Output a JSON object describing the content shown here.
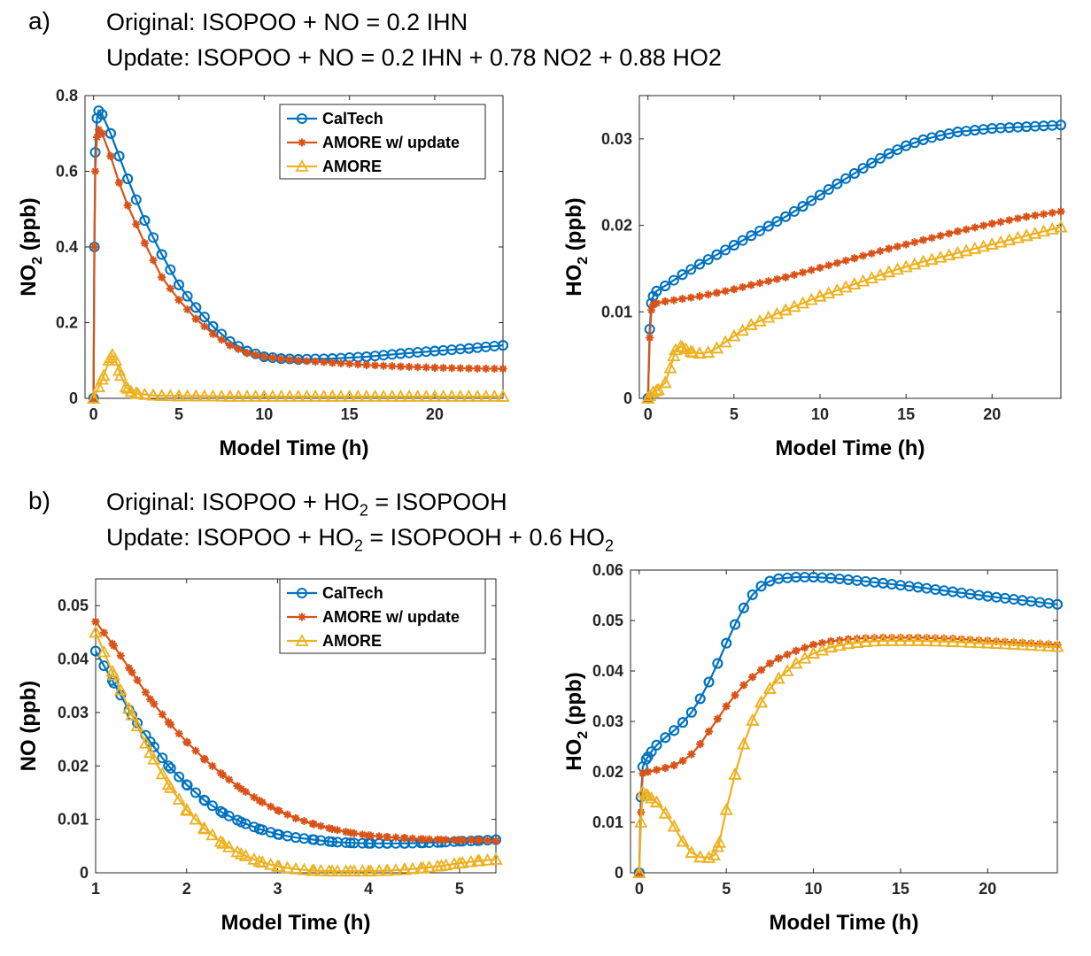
{
  "panel_a": {
    "letter": "a)",
    "line1": "Original: ISOPOO + NO = 0.2 IHN",
    "line2": "Update: ISOPOO + NO = 0.2 IHN + 0.78 NO2 + 0.88 HO2"
  },
  "panel_b": {
    "letter": "b)",
    "line1_a": "Original: ISOPOO + HO",
    "line1_sub": "2",
    "line1_b": " = ISOPOOH",
    "line2_a": "Update: ISOPOO + HO",
    "line2_sub": "2",
    "line2_b": " = ISOPOOH + 0.6 HO",
    "line2_sub2": "2"
  },
  "colors": {
    "caltech": "#0072BD",
    "amore_update": "#D95319",
    "amore": "#EDB120"
  },
  "chart_data": [
    {
      "id": "a-left",
      "type": "line",
      "xlabel": "Model Time (h)",
      "ylabel_main": "NO",
      "ylabel_sub": "2",
      "ylabel_unit": " (ppb)",
      "xlim": [
        -0.5,
        24
      ],
      "ylim": [
        0,
        0.8
      ],
      "xticks": [
        0,
        5,
        10,
        15,
        20
      ],
      "xticklabels": [
        "0",
        "5",
        "10",
        "15",
        "20"
      ],
      "yticks": [
        0,
        0.2,
        0.4,
        0.6,
        0.8
      ],
      "yticklabels": [
        "0",
        "0.2",
        "0.4",
        "0.6",
        "0.8"
      ],
      "legend": [
        "CalTech",
        "AMORE w/ update",
        "AMORE"
      ],
      "legend_position": "top-right",
      "series": [
        {
          "name": "CalTech",
          "x": [
            0,
            0.05,
            0.1,
            0.2,
            0.3,
            0.5,
            1,
            1.5,
            2,
            3,
            4,
            5,
            6,
            7,
            8,
            9,
            10,
            11,
            12,
            14,
            16,
            18,
            20,
            22,
            24
          ],
          "y": [
            0,
            0.4,
            0.65,
            0.74,
            0.76,
            0.75,
            0.7,
            0.64,
            0.58,
            0.47,
            0.38,
            0.3,
            0.24,
            0.19,
            0.15,
            0.125,
            0.11,
            0.105,
            0.103,
            0.105,
            0.11,
            0.118,
            0.125,
            0.132,
            0.14
          ]
        },
        {
          "name": "AMORE w/ update",
          "x": [
            0,
            0.05,
            0.1,
            0.2,
            0.3,
            0.5,
            1,
            1.5,
            2,
            3,
            4,
            5,
            6,
            7,
            8,
            9,
            10,
            11,
            12,
            14,
            16,
            18,
            20,
            22,
            24
          ],
          "y": [
            0,
            0.4,
            0.6,
            0.69,
            0.71,
            0.7,
            0.64,
            0.57,
            0.51,
            0.41,
            0.32,
            0.26,
            0.21,
            0.17,
            0.14,
            0.12,
            0.11,
            0.104,
            0.1,
            0.094,
            0.088,
            0.084,
            0.081,
            0.079,
            0.078
          ]
        },
        {
          "name": "AMORE",
          "x": [
            0,
            0.3,
            0.6,
            0.9,
            1.1,
            1.3,
            1.6,
            1.9,
            2.2,
            2.6,
            3,
            3.5,
            4,
            5,
            6,
            8,
            10,
            14,
            18,
            24
          ],
          "y": [
            0,
            0.03,
            0.06,
            0.1,
            0.115,
            0.1,
            0.06,
            0.03,
            0.018,
            0.012,
            0.01,
            0.008,
            0.007,
            0.006,
            0.006,
            0.005,
            0.005,
            0.005,
            0.005,
            0.005
          ]
        }
      ]
    },
    {
      "id": "a-right",
      "type": "line",
      "xlabel": "Model Time (h)",
      "ylabel_main": "HO",
      "ylabel_sub": "2",
      "ylabel_unit": " (ppb)",
      "xlim": [
        -0.5,
        24
      ],
      "ylim": [
        0,
        0.035
      ],
      "xticks": [
        0,
        5,
        10,
        15,
        20
      ],
      "xticklabels": [
        "0",
        "5",
        "10",
        "15",
        "20"
      ],
      "yticks": [
        0,
        0.01,
        0.02,
        0.03
      ],
      "yticklabels": [
        "0",
        "0.01",
        "0.02",
        "0.03"
      ],
      "series": [
        {
          "name": "CalTech",
          "x": [
            0,
            0.1,
            0.2,
            0.3,
            0.5,
            1,
            2,
            3,
            4,
            5,
            6,
            7,
            8,
            9,
            10,
            11,
            12,
            13,
            14,
            15,
            16,
            17,
            18,
            19,
            20,
            21,
            22,
            23,
            24
          ],
          "y": [
            0,
            0.008,
            0.011,
            0.0118,
            0.0124,
            0.013,
            0.0143,
            0.0155,
            0.0166,
            0.0177,
            0.0188,
            0.0199,
            0.021,
            0.0222,
            0.0235,
            0.0248,
            0.026,
            0.0272,
            0.0283,
            0.0292,
            0.0299,
            0.0304,
            0.0308,
            0.031,
            0.0312,
            0.0313,
            0.0314,
            0.0315,
            0.0316
          ]
        },
        {
          "name": "AMORE w/ update",
          "x": [
            0,
            0.1,
            0.2,
            0.3,
            0.5,
            1,
            2,
            3,
            4,
            5,
            6,
            8,
            10,
            12,
            14,
            16,
            18,
            20,
            22,
            24
          ],
          "y": [
            0,
            0.007,
            0.0102,
            0.0108,
            0.011,
            0.0112,
            0.0115,
            0.0118,
            0.0122,
            0.0126,
            0.0131,
            0.014,
            0.0151,
            0.0162,
            0.0173,
            0.0183,
            0.0193,
            0.0202,
            0.021,
            0.0216
          ]
        },
        {
          "name": "AMORE",
          "x": [
            0,
            0.1,
            0.3,
            0.6,
            1,
            1.3,
            1.6,
            1.9,
            2.2,
            2.6,
            3,
            3.5,
            4,
            5,
            6,
            8,
            10,
            12,
            14,
            16,
            18,
            20,
            22,
            24
          ],
          "y": [
            0,
            0.0003,
            0.0007,
            0.001,
            0.0018,
            0.0035,
            0.0056,
            0.006,
            0.0057,
            0.0053,
            0.0052,
            0.0053,
            0.0058,
            0.0072,
            0.0085,
            0.0102,
            0.0118,
            0.0132,
            0.0146,
            0.0158,
            0.0168,
            0.0178,
            0.0188,
            0.0198
          ]
        }
      ]
    },
    {
      "id": "b-left",
      "type": "line",
      "xlabel": "Model Time (h)",
      "ylabel_main": "NO",
      "ylabel_sub": "",
      "ylabel_unit": " (ppb)",
      "xlim": [
        1,
        5.4
      ],
      "ylim": [
        0,
        0.055
      ],
      "xticks": [
        1,
        2,
        3,
        4,
        5
      ],
      "xticklabels": [
        "1",
        "2",
        "3",
        "4",
        "5"
      ],
      "yticks": [
        0,
        0.01,
        0.02,
        0.03,
        0.04,
        0.05
      ],
      "yticklabels": [
        "0",
        "0.01",
        "0.02",
        "0.03",
        "0.04",
        "0.05"
      ],
      "legend": [
        "CalTech",
        "AMORE w/ update",
        "AMORE"
      ],
      "legend_position": "top-right",
      "series": [
        {
          "name": "CalTech",
          "x": [
            1,
            1.2,
            1.4,
            1.6,
            1.8,
            2,
            2.2,
            2.4,
            2.6,
            2.8,
            3,
            3.2,
            3.4,
            3.6,
            3.8,
            4,
            4.2,
            4.4,
            4.6,
            4.8,
            5,
            5.2,
            5.4
          ],
          "y": [
            0.0415,
            0.0355,
            0.0295,
            0.0245,
            0.02,
            0.0165,
            0.0135,
            0.0112,
            0.0095,
            0.0082,
            0.0072,
            0.0066,
            0.0062,
            0.0058,
            0.0056,
            0.0055,
            0.0055,
            0.0055,
            0.0056,
            0.0057,
            0.0059,
            0.006,
            0.0062
          ]
        },
        {
          "name": "AMORE w/ update",
          "x": [
            1,
            1.2,
            1.4,
            1.6,
            1.8,
            2,
            2.2,
            2.4,
            2.6,
            2.8,
            3,
            3.2,
            3.4,
            3.6,
            3.8,
            4,
            4.2,
            4.4,
            4.6,
            4.8,
            5,
            5.2,
            5.4
          ],
          "y": [
            0.047,
            0.0425,
            0.0375,
            0.0325,
            0.0282,
            0.0245,
            0.0212,
            0.0183,
            0.0157,
            0.0135,
            0.0117,
            0.0102,
            0.0091,
            0.0082,
            0.0075,
            0.007,
            0.0067,
            0.0065,
            0.0063,
            0.0062,
            0.0061,
            0.0061,
            0.006
          ]
        },
        {
          "name": "AMORE",
          "x": [
            1,
            1.2,
            1.4,
            1.6,
            1.8,
            2,
            2.2,
            2.4,
            2.6,
            2.8,
            3,
            3.2,
            3.4,
            3.6,
            3.8,
            4,
            4.2,
            4.4,
            4.6,
            4.8,
            5,
            5.2,
            5.4
          ],
          "y": [
            0.045,
            0.037,
            0.0295,
            0.0225,
            0.0165,
            0.0118,
            0.0082,
            0.0055,
            0.0035,
            0.0021,
            0.0012,
            0.0007,
            0.0004,
            0.0003,
            0.0003,
            0.0003,
            0.0004,
            0.0006,
            0.0009,
            0.0013,
            0.0018,
            0.0022,
            0.0025
          ]
        }
      ]
    },
    {
      "id": "b-right",
      "type": "line",
      "xlabel": "Model Time (h)",
      "ylabel_main": "HO",
      "ylabel_sub": "2",
      "ylabel_unit": " (ppb)",
      "xlim": [
        -0.5,
        24
      ],
      "ylim": [
        0,
        0.06
      ],
      "xticks": [
        0,
        5,
        10,
        15,
        20
      ],
      "xticklabels": [
        "0",
        "5",
        "10",
        "15",
        "20"
      ],
      "yticks": [
        0,
        0.01,
        0.02,
        0.03,
        0.04,
        0.05,
        0.06
      ],
      "yticklabels": [
        "0",
        "0.01",
        "0.02",
        "0.03",
        "0.04",
        "0.05",
        "0.06"
      ],
      "series": [
        {
          "name": "CalTech",
          "x": [
            0,
            0.1,
            0.2,
            0.4,
            0.7,
            1,
            1.5,
            2,
            2.5,
            3,
            3.5,
            4,
            4.5,
            5,
            5.5,
            6,
            6.5,
            7,
            7.5,
            8,
            9,
            10,
            11,
            12,
            14,
            16,
            18,
            20,
            22,
            24
          ],
          "y": [
            0,
            0.015,
            0.021,
            0.0225,
            0.024,
            0.0253,
            0.0268,
            0.0282,
            0.0298,
            0.0318,
            0.0345,
            0.0378,
            0.0415,
            0.0455,
            0.0492,
            0.0525,
            0.0551,
            0.0568,
            0.0578,
            0.0583,
            0.0586,
            0.0586,
            0.0584,
            0.0581,
            0.0574,
            0.0566,
            0.0557,
            0.0548,
            0.054,
            0.0532
          ]
        },
        {
          "name": "AMORE w/ update",
          "x": [
            0,
            0.1,
            0.2,
            0.5,
            1,
            1.5,
            2,
            2.5,
            3,
            3.5,
            4,
            4.5,
            5,
            5.5,
            6,
            6.5,
            7,
            7.5,
            8,
            9,
            10,
            11,
            12,
            13,
            14,
            16,
            18,
            20,
            22,
            24
          ],
          "y": [
            0,
            0.012,
            0.0197,
            0.02,
            0.0204,
            0.0208,
            0.0213,
            0.0222,
            0.0235,
            0.0255,
            0.028,
            0.0305,
            0.033,
            0.0352,
            0.0372,
            0.0388,
            0.0402,
            0.0415,
            0.0425,
            0.044,
            0.0452,
            0.0459,
            0.0463,
            0.0465,
            0.0466,
            0.0466,
            0.0464,
            0.046,
            0.0456,
            0.0452
          ]
        },
        {
          "name": "AMORE",
          "x": [
            0,
            0.1,
            0.2,
            0.4,
            0.7,
            1,
            1.5,
            2,
            2.5,
            3,
            3.5,
            4,
            4.3,
            4.6,
            5,
            5.5,
            6,
            6.5,
            7,
            7.5,
            8,
            9,
            10,
            11,
            12,
            13,
            14,
            16,
            18,
            20,
            22,
            24
          ],
          "y": [
            0,
            0.01,
            0.016,
            0.0155,
            0.0148,
            0.014,
            0.0118,
            0.0092,
            0.0062,
            0.004,
            0.0031,
            0.003,
            0.0035,
            0.006,
            0.0125,
            0.0195,
            0.0255,
            0.0302,
            0.0338,
            0.0365,
            0.0385,
            0.0415,
            0.0435,
            0.0447,
            0.0454,
            0.0458,
            0.046,
            0.046,
            0.0458,
            0.0455,
            0.0452,
            0.0448
          ]
        }
      ]
    }
  ]
}
